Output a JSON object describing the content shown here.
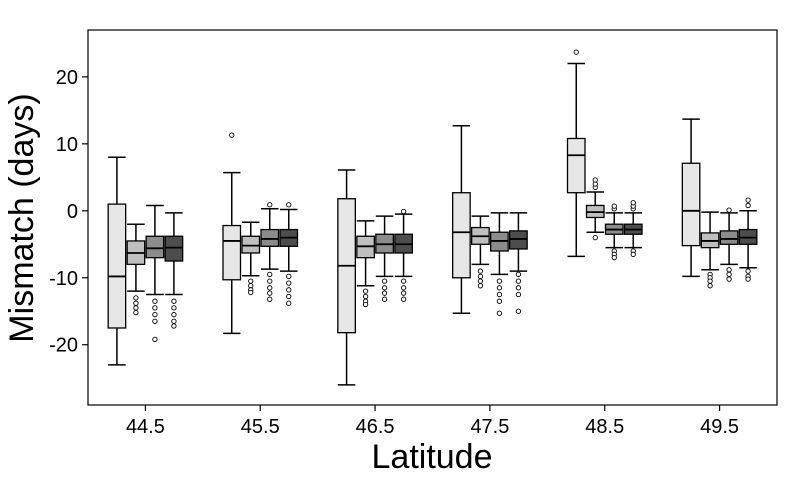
{
  "chart_data": {
    "type": "boxplot",
    "xlabel": "Latitude",
    "ylabel": "Mismatch (days)",
    "ylim": [
      -29,
      27
    ],
    "yticks": [
      20,
      10,
      0,
      -10,
      -20
    ],
    "categories": [
      "44.5",
      "45.5",
      "46.5",
      "47.5",
      "48.5",
      "49.5"
    ],
    "series_colors": [
      "#e6e6e6",
      "#bfbfbf",
      "#8c8c8c",
      "#4d4d4d"
    ],
    "groups": [
      {
        "category": "44.5",
        "boxes": [
          {
            "whisker_low": -23,
            "q1": -17.5,
            "median": -9.8,
            "q3": 1,
            "whisker_high": 8,
            "outliers": []
          },
          {
            "whisker_low": -12,
            "q1": -8,
            "median": -6.3,
            "q3": -4.5,
            "whisker_high": -2,
            "outliers": [
              -13,
              -13.8,
              -14.5,
              -15.2
            ]
          },
          {
            "whisker_low": -12.5,
            "q1": -7,
            "median": -5.6,
            "q3": -3.8,
            "whisker_high": 0.8,
            "outliers": [
              -13.5,
              -14.5,
              -15.5,
              -16.5,
              -19.2
            ]
          },
          {
            "whisker_low": -12.5,
            "q1": -7.5,
            "median": -5.5,
            "q3": -3.8,
            "whisker_high": -0.3,
            "outliers": [
              -13.5,
              -14.5,
              -15.5,
              -16.5,
              -17.2
            ]
          }
        ]
      },
      {
        "category": "45.5",
        "boxes": [
          {
            "whisker_low": -18.3,
            "q1": -10.3,
            "median": -4.5,
            "q3": -2.2,
            "whisker_high": 5.7,
            "outliers": [
              11.3
            ]
          },
          {
            "whisker_low": -9.7,
            "q1": -6.3,
            "median": -5.2,
            "q3": -3.8,
            "whisker_high": -1.7,
            "outliers": [
              -10.5,
              -11.2,
              -11.8,
              -12.2
            ]
          },
          {
            "whisker_low": -8.7,
            "q1": -5.3,
            "median": -4.2,
            "q3": -2.8,
            "whisker_high": 0.3,
            "outliers": [
              -9.5,
              -10.5,
              -11.5,
              -12.3,
              -13.2,
              0.9
            ]
          },
          {
            "whisker_low": -9,
            "q1": -5.3,
            "median": -4,
            "q3": -2.8,
            "whisker_high": 0.2,
            "outliers": [
              -9.8,
              -10.8,
              -11.8,
              -12.8,
              -13.8,
              0.9
            ]
          }
        ]
      },
      {
        "category": "46.5",
        "boxes": [
          {
            "whisker_low": -26,
            "q1": -18.2,
            "median": -8.2,
            "q3": 1.8,
            "whisker_high": 6.1,
            "outliers": []
          },
          {
            "whisker_low": -11.2,
            "q1": -7,
            "median": -5.3,
            "q3": -3.8,
            "whisker_high": -1.5,
            "outliers": [
              -12,
              -12.8,
              -13.5,
              -14
            ]
          },
          {
            "whisker_low": -9.8,
            "q1": -6.3,
            "median": -5,
            "q3": -3.5,
            "whisker_high": -0.8,
            "outliers": [
              -10.5,
              -11.5,
              -12.3,
              -13.2
            ]
          },
          {
            "whisker_low": -9.8,
            "q1": -6.3,
            "median": -5,
            "q3": -3.5,
            "whisker_high": -0.5,
            "outliers": [
              -10.5,
              -11.5,
              -12.3,
              -13.2,
              -0.1
            ]
          }
        ]
      },
      {
        "category": "47.5",
        "boxes": [
          {
            "whisker_low": -15.3,
            "q1": -10,
            "median": -3.2,
            "q3": 2.7,
            "whisker_high": 12.7,
            "outliers": []
          },
          {
            "whisker_low": -8,
            "q1": -5,
            "median": -3.8,
            "q3": -2.5,
            "whisker_high": -0.8,
            "outliers": [
              -9,
              -9.8,
              -10.5,
              -11.2
            ]
          },
          {
            "whisker_low": -9.5,
            "q1": -6,
            "median": -4.5,
            "q3": -3.2,
            "whisker_high": -0.3,
            "outliers": [
              -10.5,
              -11.5,
              -12.5,
              -13.5,
              -15.3
            ]
          },
          {
            "whisker_low": -9,
            "q1": -5.7,
            "median": -4.2,
            "q3": -3,
            "whisker_high": -0.3,
            "outliers": [
              -9.5,
              -10.5,
              -11.5,
              -12.5,
              -15
            ]
          }
        ]
      },
      {
        "category": "48.5",
        "boxes": [
          {
            "whisker_low": -6.8,
            "q1": 2.7,
            "median": 8.3,
            "q3": 10.8,
            "whisker_high": 22,
            "outliers": [
              23.7
            ]
          },
          {
            "whisker_low": -3.2,
            "q1": -1,
            "median": -0.2,
            "q3": 0.8,
            "whisker_high": 2.8,
            "outliers": [
              3.5,
              4,
              4.6,
              -4
            ]
          },
          {
            "whisker_low": -5.5,
            "q1": -3.5,
            "median": -2.8,
            "q3": -2,
            "whisker_high": -0.3,
            "outliers": [
              -6,
              -6.5,
              -7,
              0.3,
              0.7
            ]
          },
          {
            "whisker_low": -5.5,
            "q1": -3.5,
            "median": -2.8,
            "q3": -2,
            "whisker_high": -0.3,
            "outliers": [
              -6,
              -6.5,
              0.3,
              0.7,
              1.2
            ]
          }
        ]
      },
      {
        "category": "49.5",
        "boxes": [
          {
            "whisker_low": -9.8,
            "q1": -5.2,
            "median": 0,
            "q3": 7.1,
            "whisker_high": 13.7,
            "outliers": []
          },
          {
            "whisker_low": -8.8,
            "q1": -5.5,
            "median": -4.5,
            "q3": -3.3,
            "whisker_high": -0.2,
            "outliers": [
              -9.5,
              -10,
              -10.5,
              -11.2
            ]
          },
          {
            "whisker_low": -8,
            "q1": -5,
            "median": -4.2,
            "q3": -3,
            "whisker_high": -0.3,
            "outliers": [
              -8.8,
              -9.5,
              -10.2,
              0.1
            ]
          },
          {
            "whisker_low": -8.5,
            "q1": -5,
            "median": -4,
            "q3": -2.8,
            "whisker_high": 0,
            "outliers": [
              -9,
              -9.8,
              -10.2,
              0.8,
              1.6
            ]
          }
        ]
      }
    ]
  }
}
